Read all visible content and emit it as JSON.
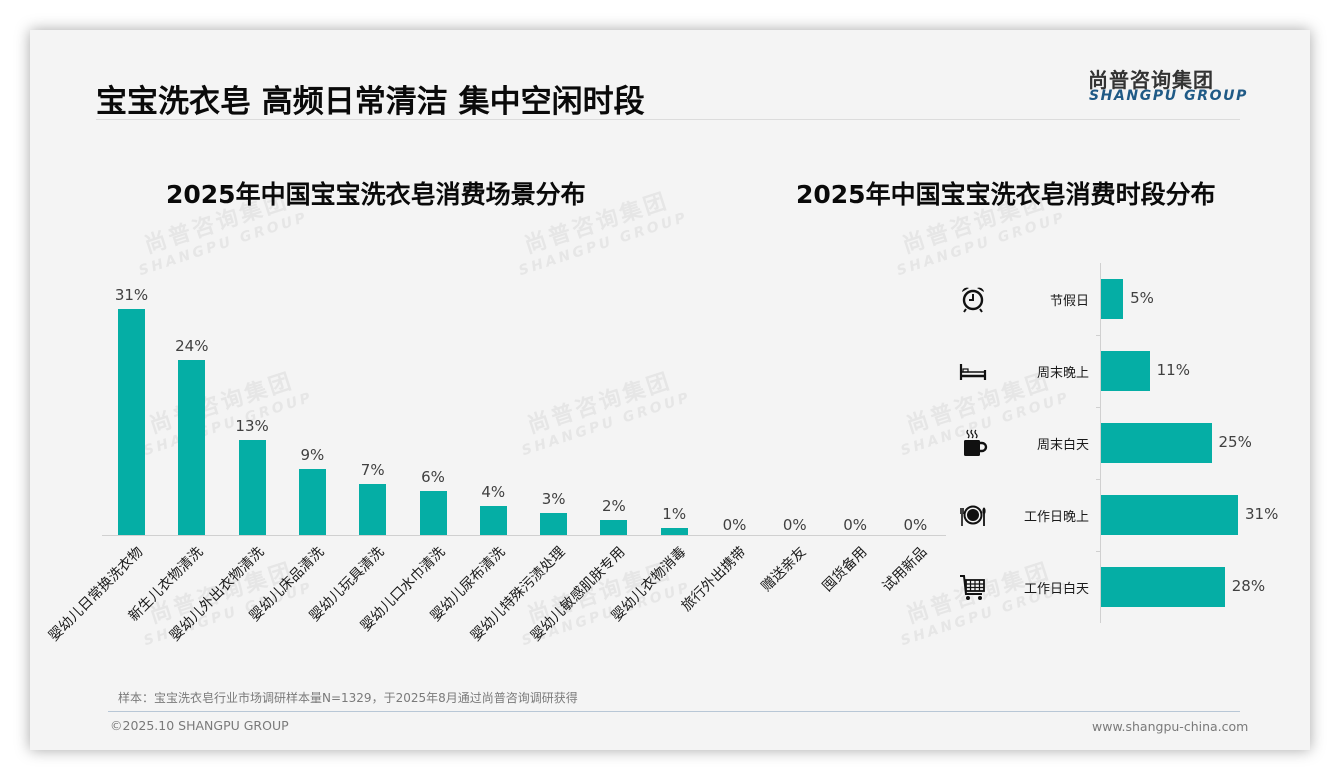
{
  "header": {
    "title": "宝宝洗衣皂 高频日常清洁 集中空闲时段",
    "logo_cn": "尚普咨询集团",
    "logo_en": "SHANGPU GROUP"
  },
  "watermark": {
    "cn": "尚普咨询集团",
    "en": "SHANGPU GROUP"
  },
  "colors": {
    "bar": "#05aea5",
    "title": "#0a0a0a",
    "logo_en": "#1f5a86",
    "background": "#f4f4f4"
  },
  "chart_data": [
    {
      "type": "bar",
      "title": "2025年中国宝宝洗衣皂消费场景分布",
      "xlabel": "",
      "ylabel": "",
      "categories": [
        "婴幼儿日常换洗衣物",
        "新生儿衣物清洗",
        "婴幼儿外出衣物清洗",
        "婴幼儿床品清洗",
        "婴幼儿玩具清洗",
        "婴幼儿口水巾清洗",
        "婴幼儿尿布清洗",
        "婴幼儿特殊污渍处理",
        "婴幼儿敏感肌肤专用",
        "婴幼儿衣物消毒",
        "旅行外出携带",
        "赠送亲友",
        "囤货备用",
        "试用新品"
      ],
      "values": [
        31,
        24,
        13,
        9,
        7,
        6,
        4,
        3,
        2,
        1,
        0,
        0,
        0,
        0
      ],
      "labels": [
        "31%",
        "24%",
        "13%",
        "9%",
        "7%",
        "6%",
        "4%",
        "3%",
        "2%",
        "1%",
        "0%",
        "0%",
        "0%",
        "0%"
      ],
      "unit": "%",
      "grid": false,
      "legend": "none"
    },
    {
      "type": "bar",
      "orientation": "horizontal",
      "title": "2025年中国宝宝洗衣皂消费时段分布",
      "xlabel": "",
      "ylabel": "",
      "categories": [
        "节假日",
        "周末晚上",
        "周末白天",
        "工作日晚上",
        "工作日白天"
      ],
      "values": [
        5,
        11,
        25,
        31,
        28
      ],
      "labels": [
        "5%",
        "11%",
        "25%",
        "31%",
        "28%"
      ],
      "icons": [
        "alarm-clock-icon",
        "bed-icon",
        "hot-coffee-icon",
        "dinner-plate-icon",
        "shopping-cart-icon"
      ],
      "unit": "%",
      "grid": false,
      "legend": "none"
    }
  ],
  "footer": {
    "note": "样本：宝宝洗衣皂行业市场调研样本量N=1329，于2025年8月通过尚普咨询调研获得",
    "copyright": "©2025.10 SHANGPU GROUP",
    "website": "www.shangpu-china.com"
  }
}
